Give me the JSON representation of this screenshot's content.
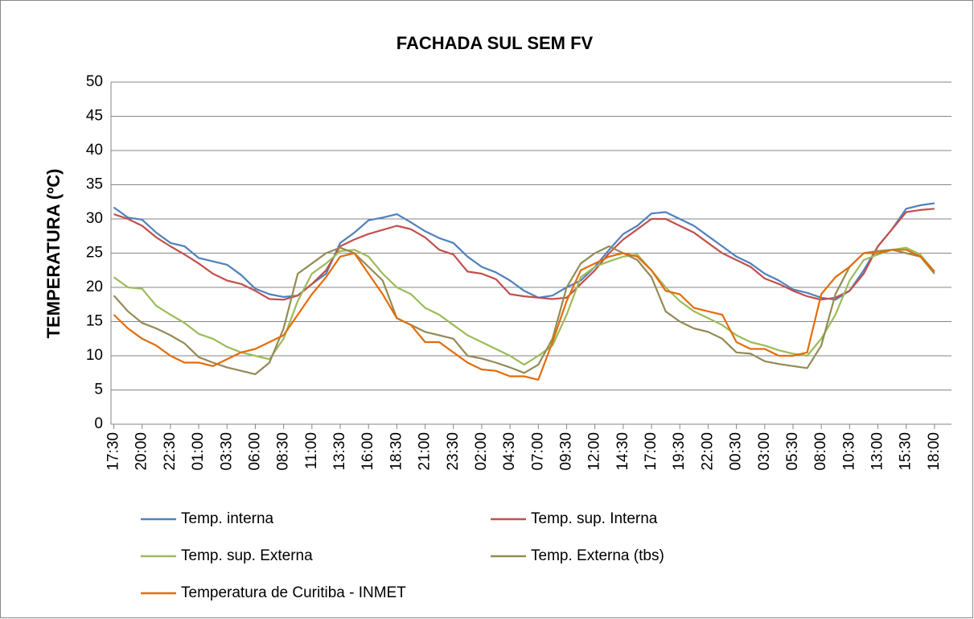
{
  "chart_data": {
    "type": "line",
    "title": "FACHADA SUL SEM FV",
    "y_label": "TEMPERATURA (ºC)",
    "categories": [
      "17:30",
      null,
      "20:00",
      null,
      "22:30",
      null,
      "01:00",
      null,
      "03:30",
      null,
      "06:00",
      null,
      "08:30",
      null,
      "11:00",
      null,
      "13:30",
      null,
      "16:00",
      null,
      "18:30",
      null,
      "21:00",
      null,
      "23:30",
      null,
      "02:00",
      null,
      "04:30",
      null,
      "07:00",
      null,
      "09:30",
      null,
      "12:00",
      null,
      "14:30",
      null,
      "17:00",
      null,
      "19:30",
      null,
      "22:00",
      null,
      "00:30",
      null,
      "03:00",
      null,
      "05:30",
      null,
      "08:00",
      null,
      "10:30",
      null,
      "13:00",
      null,
      "15:30",
      null,
      "18:00"
    ],
    "series": [
      {
        "name": "Temp. interna",
        "color": "#4f81bd",
        "values": [
          31.7,
          30.2,
          29.9,
          28,
          26.5,
          26,
          24.3,
          23.8,
          23.3,
          21.8,
          19.8,
          19,
          18.6,
          18.8,
          20.5,
          22,
          26.5,
          28,
          29.8,
          30.2,
          30.7,
          29.5,
          28.2,
          27.2,
          26.5,
          24.5,
          23,
          22.2,
          21,
          19.5,
          18.5,
          18.8,
          20,
          21,
          23,
          25.5,
          27.8,
          29,
          30.8,
          31,
          30,
          29,
          27.5,
          26,
          24.5,
          23.5,
          22,
          21,
          19.7,
          19.2,
          18.5,
          18.2,
          19.5,
          22.5,
          26,
          28.5,
          31.5,
          32,
          32.3
        ]
      },
      {
        "name": "Temp. sup. Interna",
        "color": "#c0504d",
        "values": [
          30.7,
          30,
          29,
          27.3,
          26,
          24.8,
          23.5,
          22,
          21,
          20.5,
          19.5,
          18.3,
          18.2,
          18.8,
          20.5,
          22.5,
          26,
          27,
          27.8,
          28.4,
          29,
          28.5,
          27.3,
          25.5,
          24.8,
          22.3,
          22,
          21.2,
          19,
          18.7,
          18.5,
          18.3,
          18.5,
          20.5,
          22.5,
          25,
          27,
          28.5,
          30,
          30,
          29,
          28,
          26.5,
          25,
          24,
          23,
          21.3,
          20.5,
          19.5,
          18.7,
          18.2,
          18.5,
          19.5,
          22,
          26,
          28.5,
          31,
          31.3,
          31.5
        ]
      },
      {
        "name": "Temp. sup. Externa",
        "color": "#9bbb59",
        "values": [
          21.5,
          20,
          19.8,
          17.3,
          16,
          14.8,
          13.2,
          12.5,
          11.3,
          10.5,
          10,
          9.5,
          12.5,
          18,
          22,
          23.5,
          25.3,
          25.5,
          24.5,
          22,
          20,
          19,
          17,
          16,
          14.5,
          13,
          12,
          11,
          10,
          8.7,
          10,
          11.5,
          16,
          21.5,
          23,
          23.8,
          24.5,
          24.8,
          22.5,
          20,
          18,
          16.5,
          15.5,
          14.5,
          13,
          12,
          11.5,
          10.8,
          10.3,
          10,
          12.5,
          16,
          21,
          24,
          24.8,
          25.5,
          25.8,
          24.8,
          22.3
        ]
      },
      {
        "name": "Temp. Externa (tbs)",
        "color": "#948a54",
        "values": [
          18.8,
          16.5,
          14.8,
          14,
          13,
          11.8,
          9.8,
          9,
          8.3,
          7.8,
          7.3,
          9,
          14,
          22,
          23.5,
          25,
          25.8,
          25,
          23,
          21,
          15.5,
          14.5,
          13.5,
          13,
          12.5,
          10,
          9.6,
          9,
          8.3,
          7.5,
          8.7,
          12.5,
          20,
          23.5,
          25,
          26,
          25,
          24,
          21.5,
          16.5,
          15,
          14,
          13.5,
          12.5,
          10.5,
          10.3,
          9.2,
          8.8,
          8.5,
          8.2,
          11.5,
          19,
          23,
          25,
          25.3,
          25.5,
          25,
          24.5,
          22
        ]
      },
      {
        "name": "Temperatura de Curitiba - INMET",
        "color": "#e46c0a",
        "values": [
          16,
          14,
          12.5,
          11.5,
          10,
          9,
          9,
          8.5,
          9.5,
          10.5,
          11,
          12,
          13,
          16,
          19,
          21.5,
          24.5,
          25,
          22,
          19,
          15.5,
          14.5,
          12,
          12,
          10.5,
          9,
          8,
          7.8,
          7,
          7,
          6.5,
          12,
          18,
          22.5,
          23.5,
          24.5,
          25,
          24.5,
          22.5,
          19.5,
          19,
          17,
          16.5,
          16,
          12,
          11,
          11,
          10,
          10,
          10.5,
          19,
          21.5,
          23,
          25,
          25,
          25.5,
          25.5,
          24.5,
          22.3
        ]
      }
    ],
    "ylim": [
      0,
      50
    ],
    "yticks": [
      0,
      5,
      10,
      15,
      20,
      25,
      30,
      35,
      40,
      45,
      50
    ],
    "grid": true,
    "legend": "bottom"
  }
}
